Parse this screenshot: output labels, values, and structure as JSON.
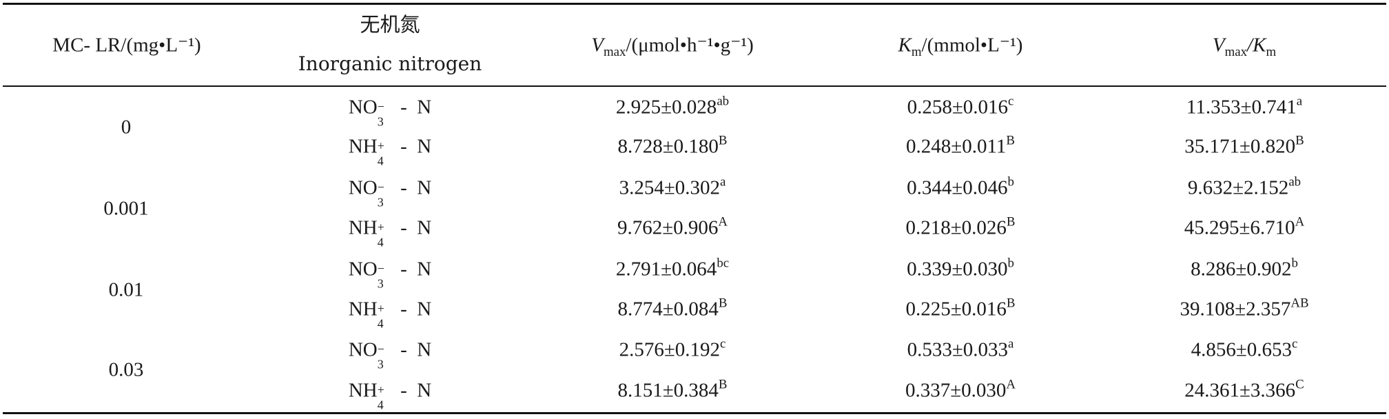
{
  "header": {
    "mc_lr": "MC-  LR/(mg•L⁻¹)",
    "nitrogen_cn": "无机氮",
    "nitrogen_en": "Inorganic nitrogen",
    "vmax_label": "V",
    "vmax_sub": "max",
    "vmax_unit": "/(μmol•h⁻¹•g⁻¹)",
    "km_label": "K",
    "km_sub": "m",
    "km_unit": "/(mmol•L⁻¹)",
    "ratio_v": "V",
    "ratio_vsub": "max",
    "ratio_k": "/K",
    "ratio_ksub": "m"
  },
  "groups": [
    {
      "conc": "0"
    },
    {
      "conc": "0.001"
    },
    {
      "conc": "0.01"
    },
    {
      "conc": "0.03"
    }
  ],
  "rows": [
    {
      "ion": "NO3- - N",
      "vmax": "2.925±0.028",
      "vmax_sig": "ab",
      "km": "0.258±0.016",
      "km_sig": "c",
      "ratio": "11.353±0.741",
      "ratio_sig": "a"
    },
    {
      "ion": "NH4+ - N",
      "vmax": "8.728±0.180",
      "vmax_sig": "B",
      "km": "0.248±0.011",
      "km_sig": "B",
      "ratio": "35.171±0.820",
      "ratio_sig": "B"
    },
    {
      "ion": "NO3- - N",
      "vmax": "3.254±0.302",
      "vmax_sig": "a",
      "km": "0.344±0.046",
      "km_sig": "b",
      "ratio": "9.632±2.152",
      "ratio_sig": "ab"
    },
    {
      "ion": "NH4+ - N",
      "vmax": "9.762±0.906",
      "vmax_sig": "A",
      "km": "0.218±0.026",
      "km_sig": "B",
      "ratio": "45.295±6.710",
      "ratio_sig": "A"
    },
    {
      "ion": "NO3- - N",
      "vmax": "2.791±0.064",
      "vmax_sig": "bc",
      "km": "0.339±0.030",
      "km_sig": "b",
      "ratio": "8.286±0.902",
      "ratio_sig": "b"
    },
    {
      "ion": "NH4+ - N",
      "vmax": "8.774±0.084",
      "vmax_sig": "B",
      "km": "0.225±0.016",
      "km_sig": "B",
      "ratio": "39.108±2.357",
      "ratio_sig": "AB"
    },
    {
      "ion": "NO3- - N",
      "vmax": "2.576±0.192",
      "vmax_sig": "c",
      "km": "0.533±0.033",
      "km_sig": "a",
      "ratio": "4.856±0.653",
      "ratio_sig": "c"
    },
    {
      "ion": "NH4+ - N",
      "vmax": "8.151±0.384",
      "vmax_sig": "B",
      "km": "0.337±0.030",
      "km_sig": "A",
      "ratio": "24.361±3.366",
      "ratio_sig": "C"
    }
  ],
  "ions": {
    "no3": {
      "base": "NO",
      "sub": "3",
      "sup": "−",
      "tail": " -  N"
    },
    "nh4": {
      "base": "NH",
      "sub": "4",
      "sup": "+",
      "tail": " -  N"
    }
  }
}
